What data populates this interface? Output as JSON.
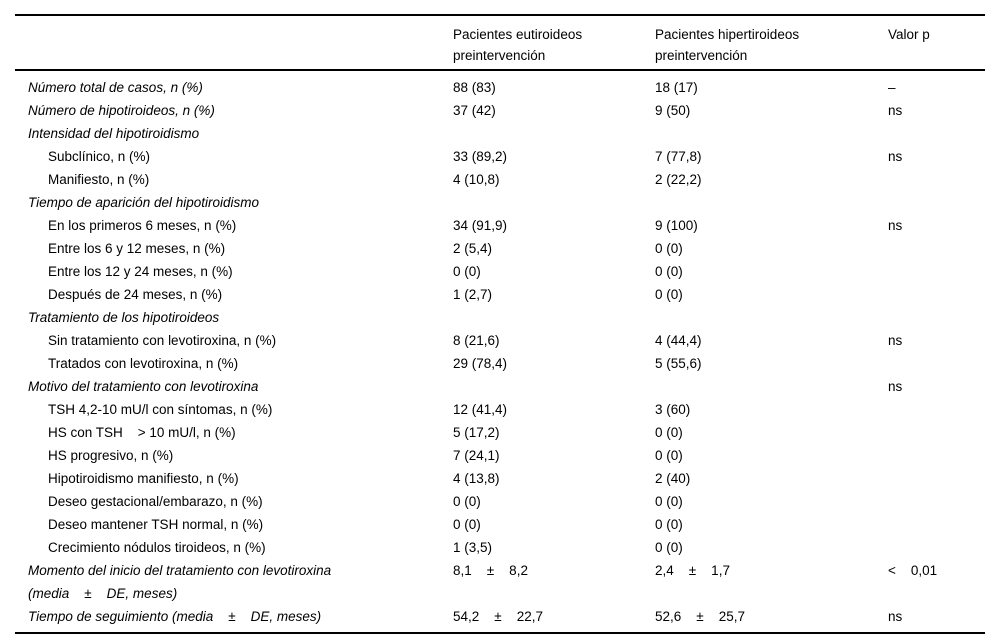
{
  "table": {
    "columns": [
      "",
      "Pacientes eutiroideos preintervención",
      "Pacientes hipertiroideos preintervención",
      "Valor p"
    ],
    "rows": [
      {
        "label": "Número total de casos, n (%)",
        "style": "italic",
        "indent": false,
        "values": [
          "88 (83)",
          "18 (17)",
          "–"
        ]
      },
      {
        "label": "Número de hipotiroideos, n (%)",
        "style": "italic",
        "indent": false,
        "values": [
          "37 (42)",
          "9 (50)",
          "ns"
        ]
      },
      {
        "label": "Intensidad del hipotiroidismo",
        "style": "italic",
        "indent": false,
        "values": [
          "",
          "",
          ""
        ]
      },
      {
        "label": "Subclínico, n (%)",
        "style": "normal",
        "indent": true,
        "values": [
          "33 (89,2)",
          "7 (77,8)",
          "ns"
        ]
      },
      {
        "label": "Manifiesto, n (%)",
        "style": "normal",
        "indent": true,
        "values": [
          "4 (10,8)",
          "2 (22,2)",
          ""
        ]
      },
      {
        "label": "Tiempo de aparición del hipotiroidismo",
        "style": "italic",
        "indent": false,
        "values": [
          "",
          "",
          ""
        ]
      },
      {
        "label": "En los primeros 6 meses, n (%)",
        "style": "normal",
        "indent": true,
        "values": [
          "34 (91,9)",
          "9 (100)",
          "ns"
        ]
      },
      {
        "label": "Entre los 6 y 12 meses, n (%)",
        "style": "normal",
        "indent": true,
        "values": [
          "2 (5,4)",
          "0 (0)",
          ""
        ]
      },
      {
        "label": "Entre los 12 y 24 meses, n (%)",
        "style": "normal",
        "indent": true,
        "values": [
          "0 (0)",
          "0 (0)",
          ""
        ]
      },
      {
        "label": "Después de 24 meses, n (%)",
        "style": "normal",
        "indent": true,
        "values": [
          "1 (2,7)",
          "0 (0)",
          ""
        ]
      },
      {
        "label": "Tratamiento de los hipotiroideos",
        "style": "italic",
        "indent": false,
        "values": [
          "",
          "",
          ""
        ]
      },
      {
        "label": "Sin tratamiento con levotiroxina, n (%)",
        "style": "normal",
        "indent": true,
        "values": [
          "8 (21,6)",
          "4 (44,4)",
          "ns"
        ]
      },
      {
        "label": "Tratados con levotiroxina, n (%)",
        "style": "normal",
        "indent": true,
        "values": [
          "29 (78,4)",
          "5 (55,6)",
          ""
        ]
      },
      {
        "label": "Motivo del tratamiento con levotiroxina",
        "style": "italic",
        "indent": false,
        "values": [
          "",
          "",
          "ns"
        ]
      },
      {
        "label": "TSH 4,2-10 mU/l con síntomas, n (%)",
        "style": "normal",
        "indent": true,
        "values": [
          "12 (41,4)",
          "3 (60)",
          ""
        ]
      },
      {
        "label": "HS con TSH    > 10 mU/l, n (%)",
        "style": "normal",
        "indent": true,
        "values": [
          "5 (17,2)",
          "0 (0)",
          ""
        ]
      },
      {
        "label": "HS progresivo, n (%)",
        "style": "normal",
        "indent": true,
        "values": [
          "7 (24,1)",
          "0 (0)",
          ""
        ]
      },
      {
        "label": "Hipotiroidismo manifiesto, n (%)",
        "style": "normal",
        "indent": true,
        "values": [
          "4 (13,8)",
          "2 (40)",
          ""
        ]
      },
      {
        "label": "Deseo gestacional/embarazo, n (%)",
        "style": "normal",
        "indent": true,
        "values": [
          "0 (0)",
          "0 (0)",
          ""
        ]
      },
      {
        "label": "Deseo mantener TSH normal, n (%)",
        "style": "normal",
        "indent": true,
        "values": [
          "0 (0)",
          "0 (0)",
          ""
        ]
      },
      {
        "label": "Crecimiento nódulos tiroideos, n (%)",
        "style": "normal",
        "indent": true,
        "values": [
          "1 (3,5)",
          "0 (0)",
          ""
        ]
      },
      {
        "label": "Momento del inicio del tratamiento con levotiroxina\n(media    ±    DE, meses)",
        "style": "italic",
        "indent": false,
        "values": [
          "8,1    ±    8,2",
          "2,4    ±    1,7",
          "<    0,01"
        ]
      },
      {
        "label": "Tiempo de seguimiento (media    ±    DE, meses)",
        "style": "italic",
        "indent": false,
        "values": [
          "54,2    ±    22,7",
          "52,6    ±    25,7",
          "ns"
        ]
      }
    ]
  }
}
